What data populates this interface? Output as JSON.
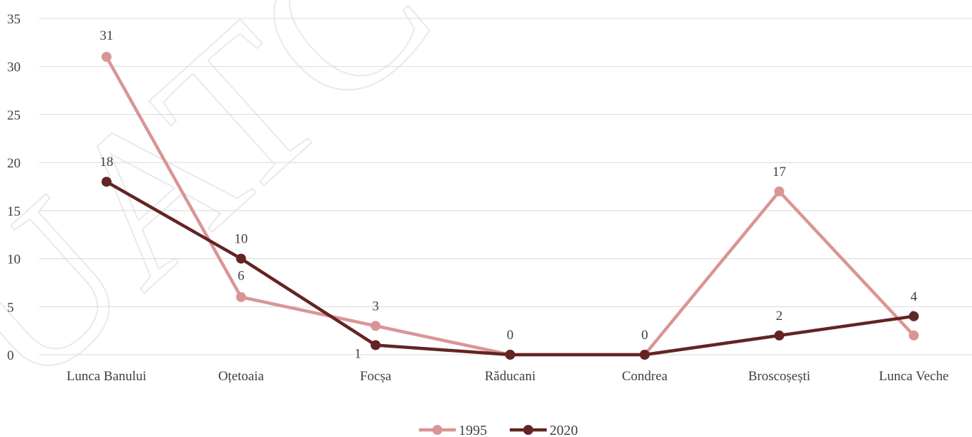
{
  "chart_data": {
    "type": "line",
    "title": "",
    "xlabel": "",
    "ylabel": "",
    "categories": [
      "Lunca Banului",
      "Oțetoaia",
      "Focșa",
      "Răducani",
      "Condrea",
      "Broscoșești",
      "Lunca Veche"
    ],
    "series": [
      {
        "name": "1995",
        "values": [
          31,
          6,
          3,
          0,
          0,
          17,
          2
        ],
        "color": "#d99594"
      },
      {
        "name": "2020",
        "values": [
          18,
          10,
          1,
          0,
          0,
          2,
          4
        ],
        "color": "#632423"
      }
    ],
    "ylim": [
      0,
      35
    ],
    "yticks": [
      0,
      5,
      10,
      15,
      20,
      25,
      30,
      35
    ],
    "grid": true,
    "legend": "bottom-center",
    "gridline_color": "#d9d9d9"
  },
  "watermark": {
    "text": "UATC Comuna",
    "color": "#d8d8d8"
  }
}
